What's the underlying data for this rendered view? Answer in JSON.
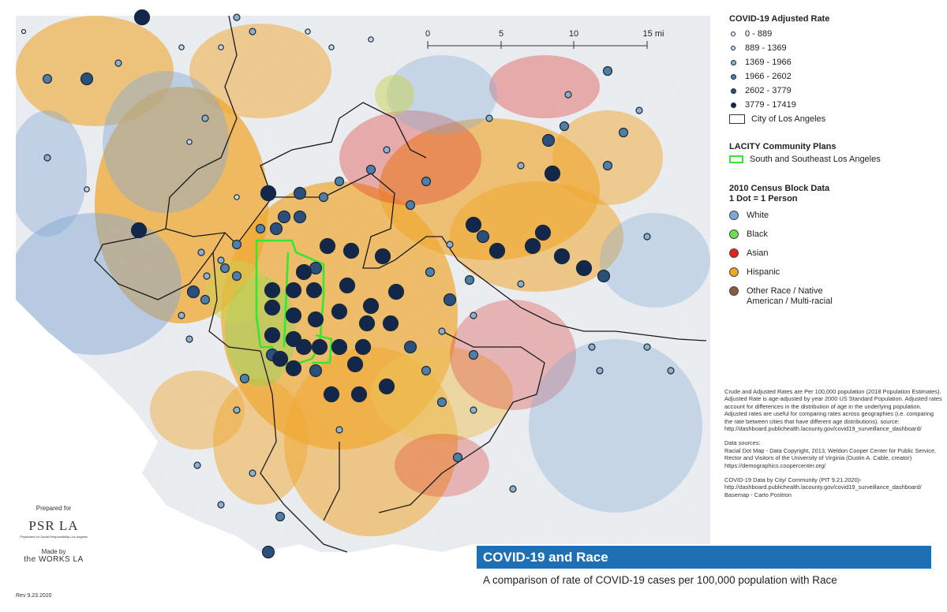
{
  "title": "COVID-19 and Race",
  "subtitle": "A comparison of rate of COVID-19 cases per 100,000 population with Race",
  "scale_bar": {
    "labels": [
      "0",
      "5",
      "10",
      "15 mi"
    ]
  },
  "legend": {
    "covid_title": "COVID-19 Adjusted Rate",
    "covid_classes": [
      "0 - 889",
      "889 - 1369",
      "1369 - 1966",
      "1966 - 2602",
      "2602 - 3779",
      "3779 - 17419"
    ],
    "city_label": "City of Los Angeles",
    "plans_title": "LACITY Community Plans",
    "plans_label": "South and Southeast Los Angeles",
    "census_title": "2010 Census Block Data",
    "census_subtitle": "1 Dot = 1 Person",
    "races": [
      {
        "label": "White",
        "color": "#7fa8d8"
      },
      {
        "label": "Black",
        "color": "#6ee04a"
      },
      {
        "label": "Asian",
        "color": "#e2231a"
      },
      {
        "label": "Hispanic",
        "color": "#f5a623"
      },
      {
        "label": "Other Race / Native American / Multi-racial",
        "color": "#8b5a3c"
      }
    ]
  },
  "notes": {
    "rates": "Crude and Adjusted Rates are Per 100,000 population (2018 Population Estimates). Adjusted Rate is age-adjusted by year 2000 US Standard Population. Adjusted rates account for differences in the distribution of age in the underlying population. Adjusted rates are useful for comparing rates across geographies (i.e. comparing the rate between cities that have different age distributions). source: http://dashboard.publichealth.lacounty.gov/covid19_surveillance_dashboard/",
    "sources_title": "Data sources:",
    "racial_source": "Racial Dot Map - Data Copyright, 2013, Weldon Cooper Center for Public Service, Rector and Visitors of the University of Virginia (Dustin A. Cable, creator) https://demographics.coopercenter.org/",
    "covid_source": "COVID-19 Data by City/ Community (PIT 9.21.2020)- http://dashboard.publichealth.lacounty.gov/covid19_surveillance_dashboard/",
    "basemap": "Basemap - Carto Positron"
  },
  "credits": {
    "prepared_for": "Prepared for",
    "org": "PSR LA",
    "org_sub": "Physicians for Social Responsibility Los Angeles",
    "made_by": "Made by",
    "maker": "the WORKS LA",
    "revision": "Rev 9.23.2020"
  }
}
